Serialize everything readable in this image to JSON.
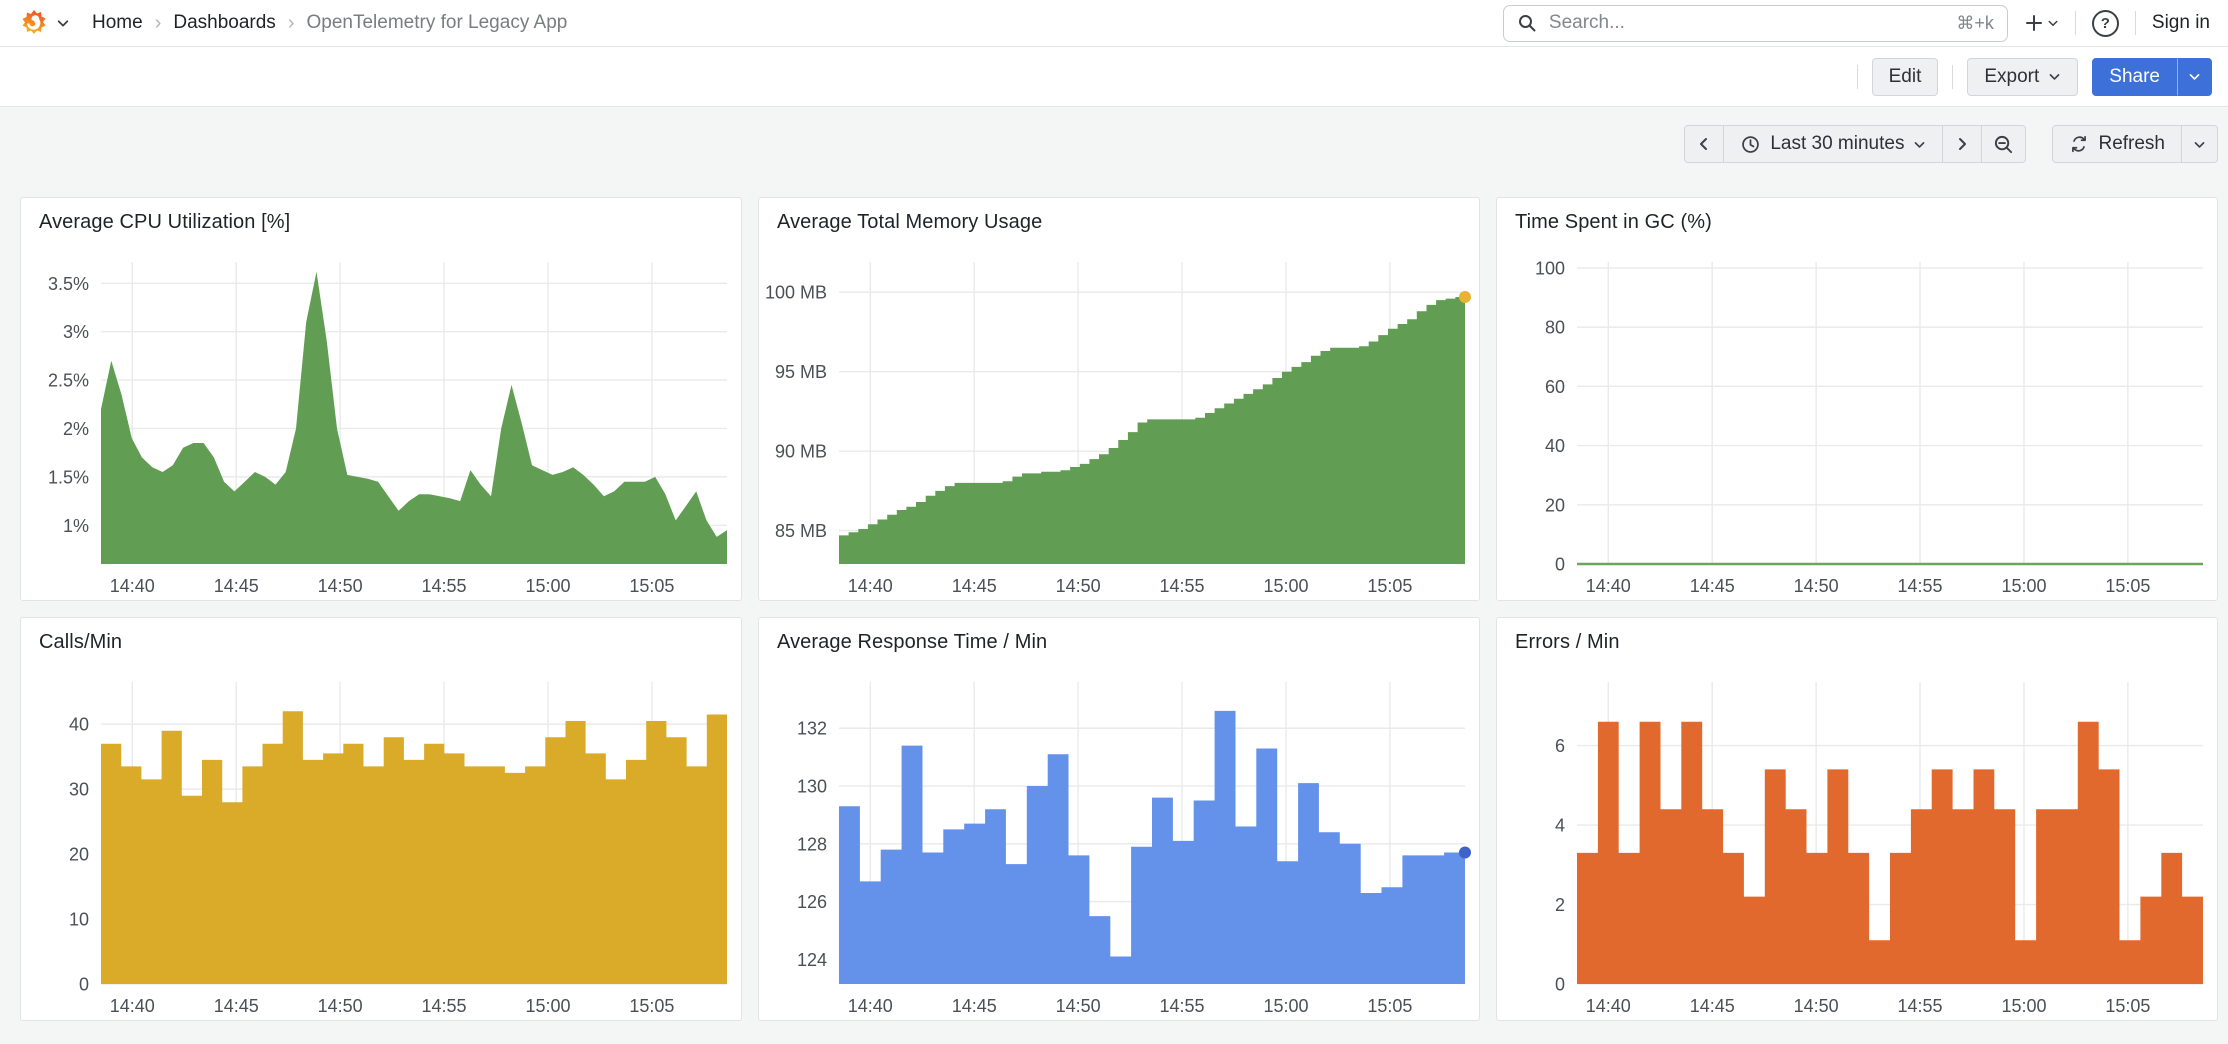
{
  "header": {
    "breadcrumbs": [
      {
        "label": "Home"
      },
      {
        "label": "Dashboards"
      },
      {
        "label": "OpenTelemetry for Legacy App"
      }
    ],
    "breadcrumb_separator": "›",
    "search_placeholder": "Search...",
    "search_shortcut": "⌘+k",
    "sign_in_label": "Sign in"
  },
  "toolbar": {
    "edit_label": "Edit",
    "export_label": "Export",
    "share_label": "Share"
  },
  "timebar": {
    "time_range_label": "Last 30 minutes",
    "refresh_label": "Refresh"
  },
  "colors": {
    "primary_blue": "#3d71d9",
    "series_green": "#619e53",
    "series_yellow": "#d9ab28",
    "series_blue": "#6491e9",
    "series_orange": "#e2692e"
  },
  "panels": [
    {
      "title": "Average CPU Utilization [%]",
      "chart_data": {
        "type": "area",
        "color": "#619e53",
        "ylim": [
          0.6,
          3.72
        ],
        "y_ticks": [
          {
            "v": 1,
            "label": "1%"
          },
          {
            "v": 1.5,
            "label": "1.5%"
          },
          {
            "v": 2,
            "label": "2%"
          },
          {
            "v": 2.5,
            "label": "2.5%"
          },
          {
            "v": 3,
            "label": "3%"
          },
          {
            "v": 3.5,
            "label": "3.5%"
          }
        ],
        "x_ticks": [
          {
            "f": 0.05,
            "label": "14:40"
          },
          {
            "f": 0.216,
            "label": "14:45"
          },
          {
            "f": 0.382,
            "label": "14:50"
          },
          {
            "f": 0.548,
            "label": "14:55"
          },
          {
            "f": 0.714,
            "label": "15:00"
          },
          {
            "f": 0.88,
            "label": "15:05"
          }
        ],
        "values": [
          2.2,
          2.7,
          2.35,
          1.9,
          1.7,
          1.6,
          1.55,
          1.62,
          1.8,
          1.85,
          1.85,
          1.7,
          1.45,
          1.35,
          1.45,
          1.55,
          1.5,
          1.42,
          1.55,
          2.0,
          3.1,
          3.62,
          2.9,
          2.0,
          1.52,
          1.5,
          1.48,
          1.45,
          1.3,
          1.15,
          1.25,
          1.32,
          1.32,
          1.3,
          1.28,
          1.25,
          1.57,
          1.42,
          1.3,
          2.0,
          2.45,
          2.05,
          1.62,
          1.57,
          1.52,
          1.55,
          1.6,
          1.52,
          1.42,
          1.3,
          1.35,
          1.45,
          1.45,
          1.45,
          1.5,
          1.32,
          1.05,
          1.2,
          1.35,
          1.05,
          0.88,
          0.95
        ]
      }
    },
    {
      "title": "Average Total Memory Usage",
      "chart_data": {
        "type": "steps",
        "color": "#619e53",
        "end_dot": "#e9b234",
        "ylim": [
          82.9,
          101.9
        ],
        "y_ticks": [
          {
            "v": 85,
            "label": "85 MB"
          },
          {
            "v": 90,
            "label": "90 MB"
          },
          {
            "v": 95,
            "label": "95 MB"
          },
          {
            "v": 100,
            "label": "100 MB"
          }
        ],
        "x_ticks": [
          {
            "f": 0.05,
            "label": "14:40"
          },
          {
            "f": 0.216,
            "label": "14:45"
          },
          {
            "f": 0.382,
            "label": "14:50"
          },
          {
            "f": 0.548,
            "label": "14:55"
          },
          {
            "f": 0.714,
            "label": "15:00"
          },
          {
            "f": 0.88,
            "label": "15:05"
          }
        ],
        "values": [
          84.7,
          84.9,
          85.1,
          85.4,
          85.7,
          86.0,
          86.3,
          86.5,
          86.8,
          87.2,
          87.5,
          87.8,
          88.0,
          88.0,
          88.0,
          88.0,
          88.0,
          88.1,
          88.4,
          88.6,
          88.6,
          88.7,
          88.7,
          88.8,
          89.0,
          89.2,
          89.5,
          89.8,
          90.2,
          90.7,
          91.2,
          91.8,
          92.0,
          92.0,
          92.0,
          92.0,
          92.0,
          92.1,
          92.4,
          92.7,
          93.0,
          93.3,
          93.6,
          93.9,
          94.2,
          94.6,
          95.0,
          95.3,
          95.6,
          96.0,
          96.3,
          96.5,
          96.5,
          96.5,
          96.6,
          96.9,
          97.3,
          97.7,
          98.0,
          98.3,
          98.8,
          99.2,
          99.5,
          99.6,
          99.7,
          99.7
        ]
      }
    },
    {
      "title": "Time Spent in GC (%)",
      "chart_data": {
        "type": "line",
        "color": "#6fa35f",
        "ylim": [
          0,
          102
        ],
        "y_ticks": [
          {
            "v": 0,
            "label": "0"
          },
          {
            "v": 20,
            "label": "20"
          },
          {
            "v": 40,
            "label": "40"
          },
          {
            "v": 60,
            "label": "60"
          },
          {
            "v": 80,
            "label": "80"
          },
          {
            "v": 100,
            "label": "100"
          }
        ],
        "x_ticks": [
          {
            "f": 0.05,
            "label": "14:40"
          },
          {
            "f": 0.216,
            "label": "14:45"
          },
          {
            "f": 0.382,
            "label": "14:50"
          },
          {
            "f": 0.548,
            "label": "14:55"
          },
          {
            "f": 0.714,
            "label": "15:00"
          },
          {
            "f": 0.88,
            "label": "15:05"
          }
        ],
        "values": [
          0,
          0
        ]
      }
    },
    {
      "title": "Calls/Min",
      "chart_data": {
        "type": "bars",
        "color": "#d9ab28",
        "ylim": [
          0,
          46.5
        ],
        "y_ticks": [
          {
            "v": 0,
            "label": "0"
          },
          {
            "v": 10,
            "label": "10"
          },
          {
            "v": 20,
            "label": "20"
          },
          {
            "v": 30,
            "label": "30"
          },
          {
            "v": 40,
            "label": "40"
          }
        ],
        "x_ticks": [
          {
            "f": 0.05,
            "label": "14:40"
          },
          {
            "f": 0.216,
            "label": "14:45"
          },
          {
            "f": 0.382,
            "label": "14:50"
          },
          {
            "f": 0.548,
            "label": "14:55"
          },
          {
            "f": 0.714,
            "label": "15:00"
          },
          {
            "f": 0.88,
            "label": "15:05"
          }
        ],
        "values": [
          37,
          33.5,
          31.5,
          39,
          29,
          34.5,
          28,
          33.5,
          37,
          42,
          34.5,
          35.5,
          37,
          33.5,
          38,
          34.5,
          37,
          35.5,
          33.5,
          33.5,
          32.5,
          33.5,
          38,
          40.5,
          35.5,
          31.5,
          34.5,
          40.5,
          38,
          33.5,
          41.5
        ]
      }
    },
    {
      "title": "Average Response Time / Min",
      "chart_data": {
        "type": "bars",
        "color": "#6491e9",
        "end_dot": "#3e63c8",
        "ylim": [
          123.15,
          133.6
        ],
        "y_ticks": [
          {
            "v": 124,
            "label": "124"
          },
          {
            "v": 126,
            "label": "126"
          },
          {
            "v": 128,
            "label": "128"
          },
          {
            "v": 130,
            "label": "130"
          },
          {
            "v": 132,
            "label": "132"
          }
        ],
        "x_ticks": [
          {
            "f": 0.05,
            "label": "14:40"
          },
          {
            "f": 0.216,
            "label": "14:45"
          },
          {
            "f": 0.382,
            "label": "14:50"
          },
          {
            "f": 0.548,
            "label": "14:55"
          },
          {
            "f": 0.714,
            "label": "15:00"
          },
          {
            "f": 0.88,
            "label": "15:05"
          }
        ],
        "values": [
          129.3,
          126.7,
          127.8,
          131.4,
          127.7,
          128.5,
          128.7,
          129.2,
          127.3,
          130.0,
          131.1,
          127.6,
          125.5,
          124.1,
          127.9,
          129.6,
          128.1,
          129.5,
          132.6,
          128.6,
          131.3,
          127.4,
          130.1,
          128.4,
          128.0,
          126.3,
          126.5,
          127.6,
          127.6,
          127.7
        ]
      }
    },
    {
      "title": "Errors / Min",
      "chart_data": {
        "type": "bars",
        "color": "#e2692e",
        "ylim": [
          0,
          7.6
        ],
        "y_ticks": [
          {
            "v": 0,
            "label": "0"
          },
          {
            "v": 2,
            "label": "2"
          },
          {
            "v": 4,
            "label": "4"
          },
          {
            "v": 6,
            "label": "6"
          }
        ],
        "x_ticks": [
          {
            "f": 0.05,
            "label": "14:40"
          },
          {
            "f": 0.216,
            "label": "14:45"
          },
          {
            "f": 0.382,
            "label": "14:50"
          },
          {
            "f": 0.548,
            "label": "14:55"
          },
          {
            "f": 0.714,
            "label": "15:00"
          },
          {
            "f": 0.88,
            "label": "15:05"
          }
        ],
        "values": [
          3.3,
          6.6,
          3.3,
          6.6,
          4.4,
          6.6,
          4.4,
          3.3,
          2.2,
          5.4,
          4.4,
          3.3,
          5.4,
          3.3,
          1.1,
          3.3,
          4.4,
          5.4,
          4.4,
          5.4,
          4.4,
          1.1,
          4.4,
          4.4,
          6.6,
          5.4,
          1.1,
          2.2,
          3.3,
          2.2
        ]
      }
    }
  ]
}
